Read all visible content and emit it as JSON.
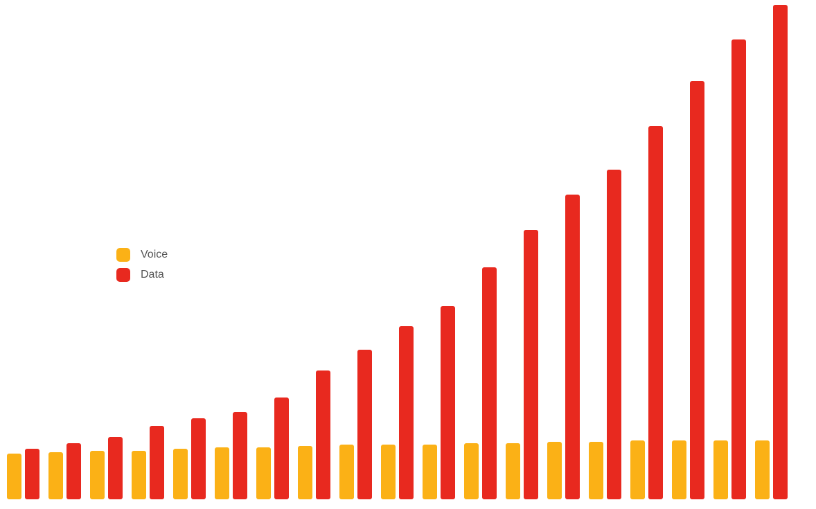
{
  "chart_data": {
    "type": "bar",
    "series": [
      {
        "name": "Voice",
        "color": "#fbb116",
        "values": [
          66,
          68,
          70,
          70,
          73,
          75,
          75,
          77,
          79,
          79,
          79,
          81,
          81,
          83,
          83,
          85,
          85,
          85,
          85
        ]
      },
      {
        "name": "Data",
        "color": "#e8291f",
        "values": [
          73,
          81,
          90,
          106,
          117,
          126,
          147,
          186,
          216,
          250,
          279,
          335,
          389,
          440,
          476,
          539,
          604,
          664,
          714
        ]
      }
    ],
    "ylim": [
      0,
      720
    ]
  }
}
